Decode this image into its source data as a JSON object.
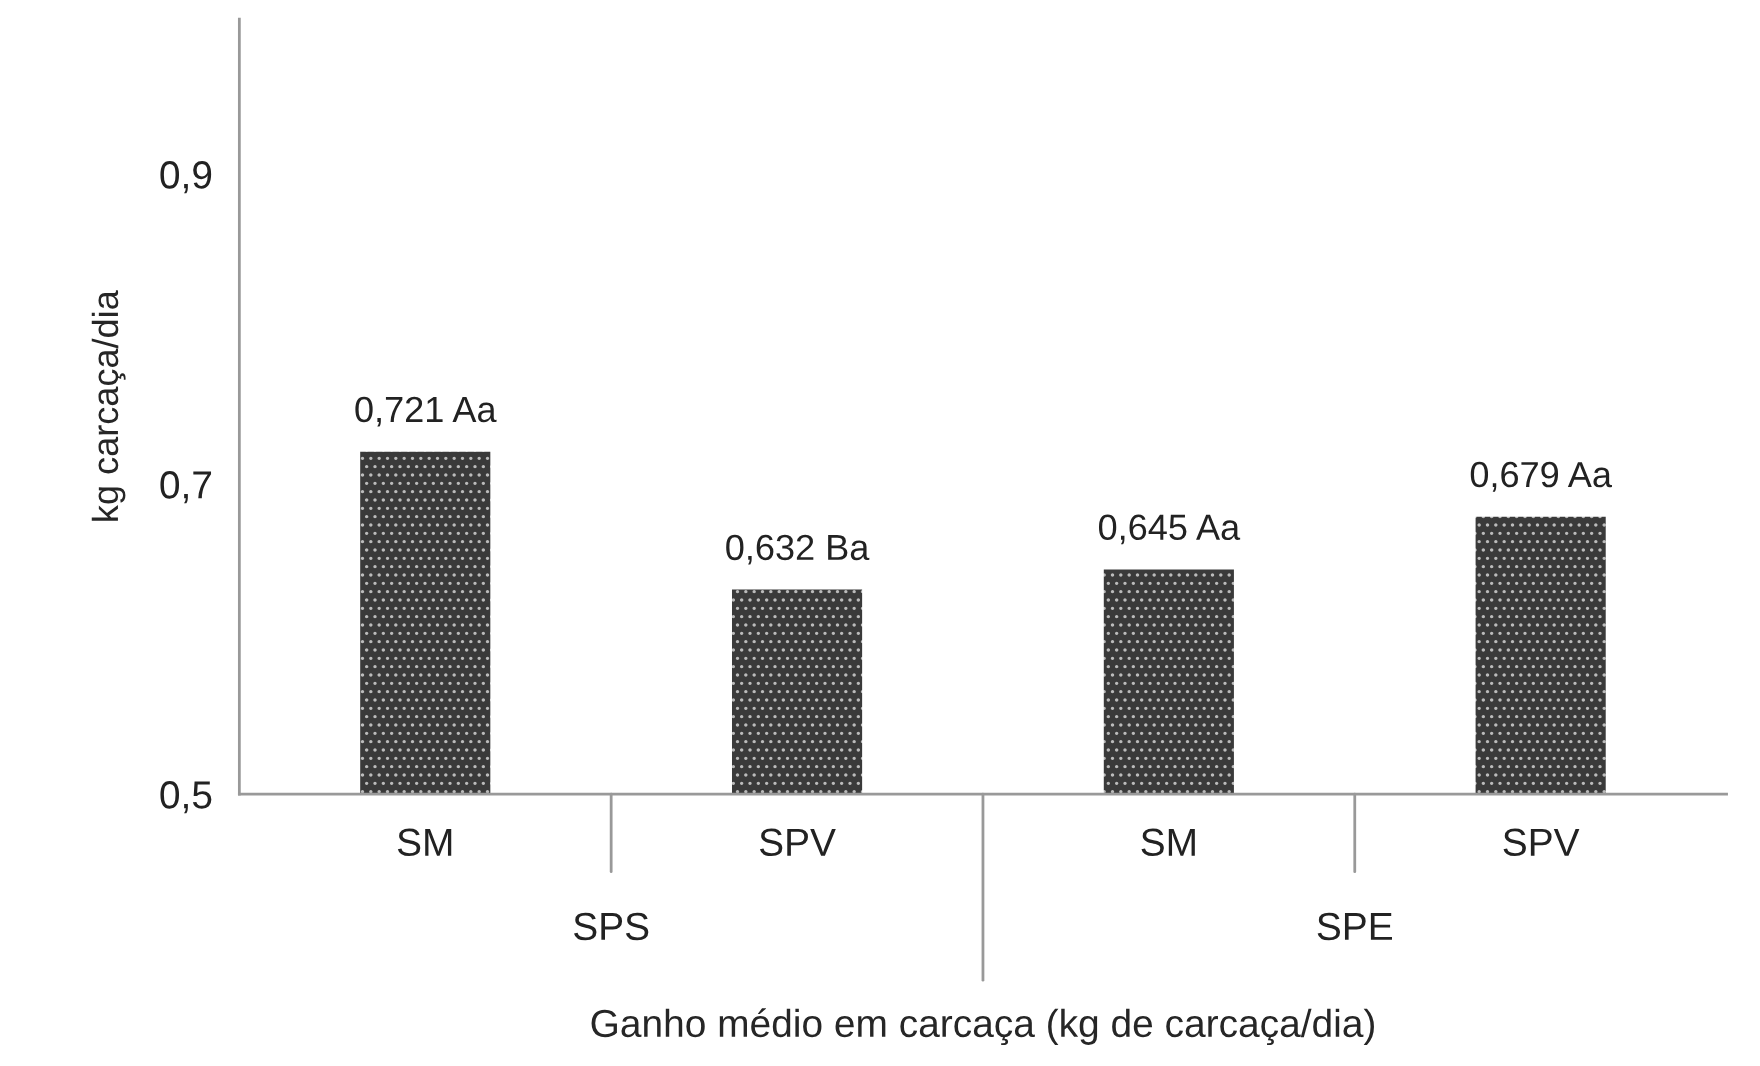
{
  "chart_data": {
    "type": "bar",
    "xlabel": "Ganho médio em carcaça (kg de carcaça/dia)",
    "ylabel": "kg carcaça/dia",
    "categories": [
      "SM",
      "SPV",
      "SM",
      "SPV"
    ],
    "values": [
      0.721,
      0.632,
      0.645,
      0.679
    ],
    "value_labels": [
      "0,721 Aa",
      "0,632 Ba",
      "0,645 Aa",
      "0,679 Aa"
    ],
    "color": "#3a3a3a",
    "ylim": [
      0.5,
      1.0
    ],
    "yticks": [
      {
        "value": 0.5,
        "label": "0,5"
      },
      {
        "value": 0.7,
        "label": "0,7"
      },
      {
        "value": 0.9,
        "label": "0,9"
      }
    ],
    "annotations": [
      "SPS",
      "SPE"
    ],
    "grid": false
  }
}
